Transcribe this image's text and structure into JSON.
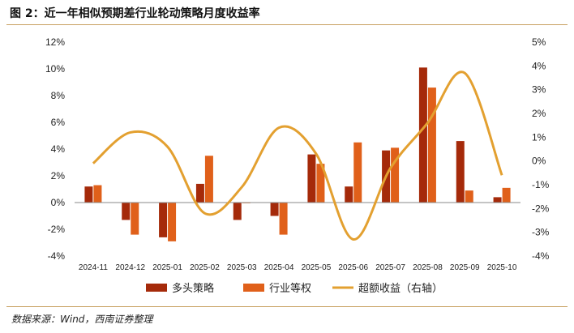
{
  "figure": {
    "title": "图 2：近一年相似预期差行业轮动策略月度收益率",
    "source": "数据来源：Wind，西南证券整理"
  },
  "chart_data": {
    "type": "bar",
    "categories": [
      "2024-11",
      "2024-12",
      "2025-01",
      "2025-02",
      "2025-03",
      "2025-04",
      "2025-05",
      "2025-06",
      "2025-07",
      "2025-08",
      "2025-09",
      "2025-10"
    ],
    "series": [
      {
        "name": "多头策略",
        "type": "bar",
        "axis": "left",
        "color": "#a52a0a",
        "values": [
          1.2,
          -1.3,
          -2.6,
          1.4,
          -1.3,
          -1.0,
          3.6,
          1.2,
          3.9,
          10.1,
          4.6,
          0.4
        ]
      },
      {
        "name": "行业等权",
        "type": "bar",
        "axis": "left",
        "color": "#e0601a",
        "values": [
          1.3,
          -2.4,
          -2.9,
          3.5,
          -0.05,
          -2.4,
          2.9,
          4.5,
          4.1,
          8.6,
          0.9,
          1.1
        ]
      },
      {
        "name": "超额收益（右轴）",
        "type": "line",
        "axis": "right",
        "color": "#e3a030",
        "values": [
          -0.1,
          1.2,
          0.6,
          -2.2,
          -1.1,
          1.4,
          0.3,
          -3.3,
          -0.3,
          1.6,
          3.7,
          -0.6
        ]
      }
    ],
    "y_left": {
      "min": -4,
      "max": 12,
      "ticks": [
        "-4%",
        "-2%",
        "0%",
        "2%",
        "4%",
        "6%",
        "8%",
        "10%",
        "12%"
      ]
    },
    "y_right": {
      "min": -4,
      "max": 5,
      "ticks": [
        "-4%",
        "-3%",
        "-2%",
        "-1%",
        "0%",
        "1%",
        "2%",
        "3%",
        "4%",
        "5%"
      ]
    },
    "legend_position": "bottom",
    "grid": false
  }
}
